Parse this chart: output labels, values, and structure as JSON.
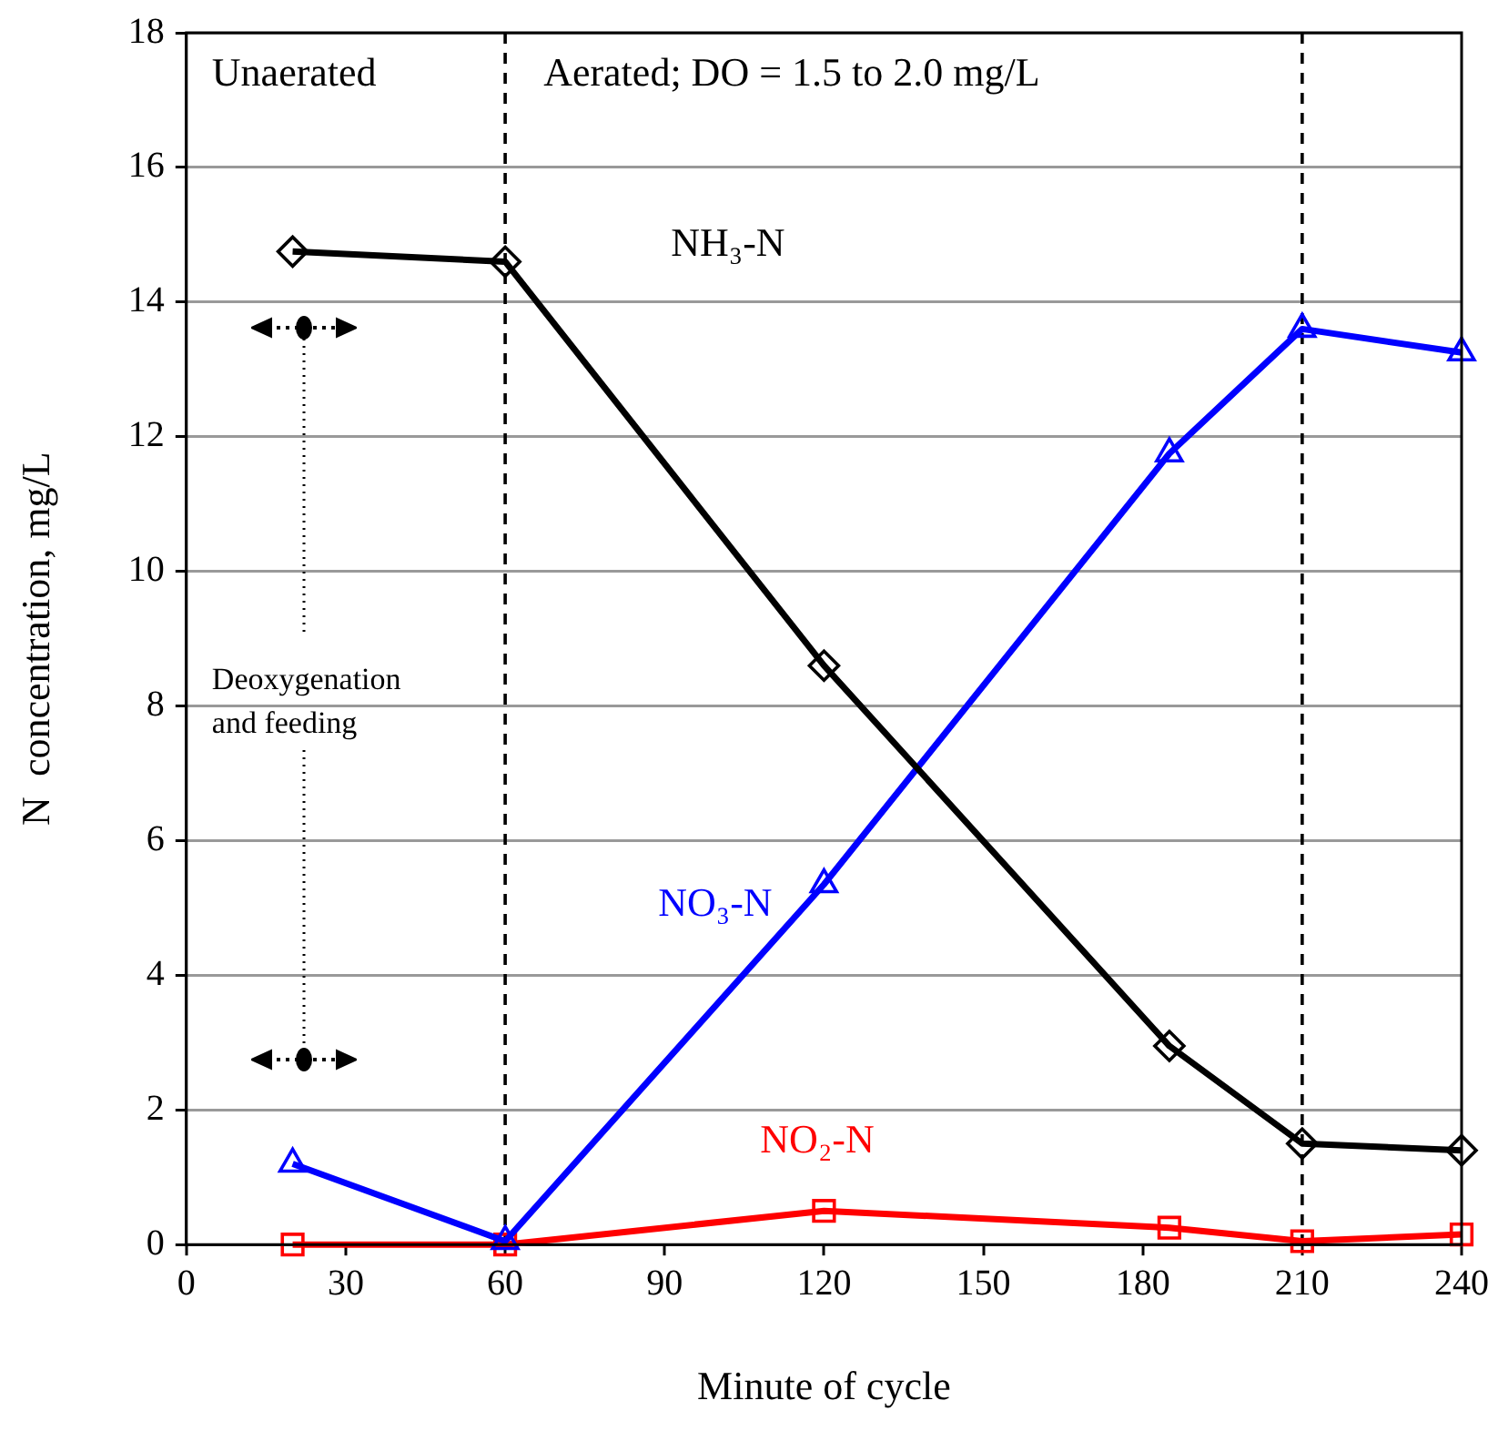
{
  "chart_data": {
    "type": "line",
    "xlabel": "Minute of cycle",
    "ylabel": "N  concentration, mg/L",
    "xlim": [
      0,
      240
    ],
    "xticks": [
      0,
      30,
      60,
      90,
      120,
      150,
      180,
      210,
      240
    ],
    "ylim": [
      0,
      18
    ],
    "yticks": [
      0,
      2,
      4,
      6,
      8,
      10,
      12,
      14,
      16,
      18
    ],
    "grid": "y",
    "legend": false,
    "line_style": "solid",
    "series": [
      {
        "name": "NH₃-N",
        "color": "#000000",
        "marker": "diamond",
        "x": [
          20,
          60,
          120,
          185,
          210,
          240
        ],
        "values": [
          14.75,
          14.6,
          8.6,
          2.95,
          1.5,
          1.4
        ]
      },
      {
        "name": "NO₃-N",
        "color": "#0000ff",
        "marker": "triangle",
        "x": [
          20,
          60,
          120,
          185,
          210,
          240
        ],
        "values": [
          1.2,
          0.05,
          5.35,
          11.75,
          13.6,
          13.25
        ]
      },
      {
        "name": "NO₂-N",
        "color": "#ff0000",
        "marker": "square",
        "x": [
          20,
          60,
          120,
          185,
          210,
          240
        ],
        "values": [
          0,
          0,
          0.5,
          0.25,
          0.05,
          0.15
        ]
      }
    ],
    "ref_lines": [
      {
        "axis": "x",
        "value": 60,
        "color": "#000000",
        "line_style": "dashed"
      },
      {
        "axis": "x",
        "value": 210,
        "color": "#000000",
        "line_style": "dashed"
      }
    ],
    "annotations": [
      "Unaerated",
      "Aerated; DO = 1.5 to 2.0 mg/L",
      "Deoxygenation and feeding"
    ]
  }
}
